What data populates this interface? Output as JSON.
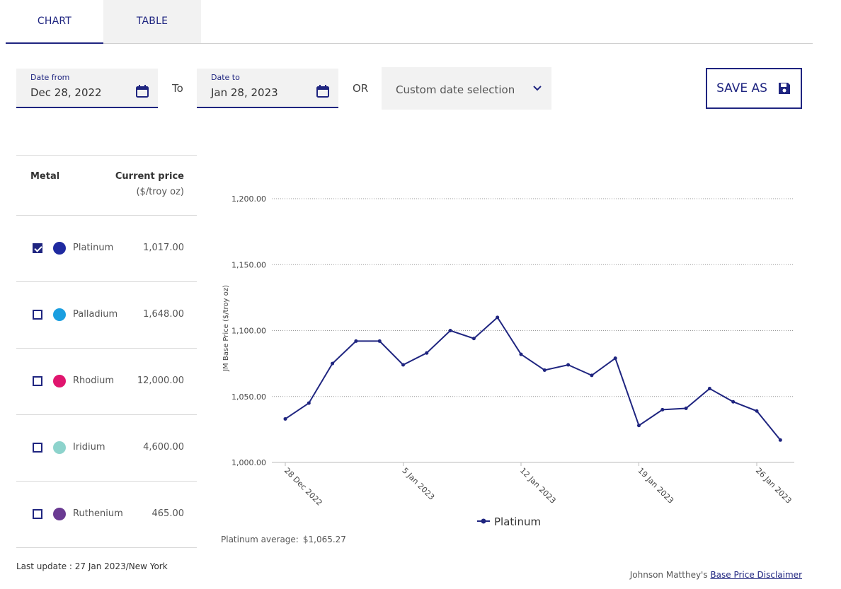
{
  "tabs": [
    {
      "label": "CHART",
      "active": true
    },
    {
      "label": "TABLE",
      "active": false
    }
  ],
  "date_from": {
    "label": "Date from",
    "value": "Dec 28, 2022"
  },
  "to_label": "To",
  "date_to": {
    "label": "Date to",
    "value": "Jan 28, 2023"
  },
  "or_label": "OR",
  "custom_selection": "Custom date selection",
  "save_button": "SAVE AS",
  "metal_table": {
    "header_metal": "Metal",
    "header_price": "Current price",
    "header_unit": "($/troy oz)",
    "rows": [
      {
        "name": "Platinum",
        "price": "1,017.00",
        "checked": true,
        "color": "#1f2aa0"
      },
      {
        "name": "Palladium",
        "price": "1,648.00",
        "checked": false,
        "color": "#1a9ee0"
      },
      {
        "name": "Rhodium",
        "price": "12,000.00",
        "checked": false,
        "color": "#e0156e"
      },
      {
        "name": "Iridium",
        "price": "4,600.00",
        "checked": false,
        "color": "#8dd3cc"
      },
      {
        "name": "Ruthenium",
        "price": "465.00",
        "checked": false,
        "color": "#6a3a92"
      }
    ]
  },
  "last_update": "Last update : 27 Jan 2023/New York",
  "average": {
    "label": "Platinum average:",
    "value": "$1,065.27"
  },
  "disclaimer": {
    "prefix": "Johnson Matthey's ",
    "link": "Base Price Disclaimer"
  },
  "chart_data": {
    "type": "line",
    "ylabel": "JM Base Price ($/troy oz)",
    "ylim": [
      1000,
      1200
    ],
    "yticks": [
      "1,000.00",
      "1,050.00",
      "1,100.00",
      "1,150.00",
      "1,200.00"
    ],
    "ytick_values": [
      1000,
      1050,
      1100,
      1150,
      1200
    ],
    "xticks": [
      "28 Dec 2022",
      "5 Jan 2023",
      "12 Jan 2023",
      "19 Jan 2023",
      "26 Jan 2023"
    ],
    "xtick_index": [
      0,
      5,
      10,
      15,
      20
    ],
    "grid": true,
    "legend": "bottom",
    "series": [
      {
        "name": "Platinum",
        "color": "#1f2580",
        "values": [
          1033,
          1045,
          1075,
          1092,
          1092,
          1074,
          1083,
          1100,
          1094,
          1110,
          1082,
          1070,
          1074,
          1066,
          1079,
          1028,
          1040,
          1041,
          1056,
          1046,
          1039,
          1017
        ]
      }
    ]
  }
}
